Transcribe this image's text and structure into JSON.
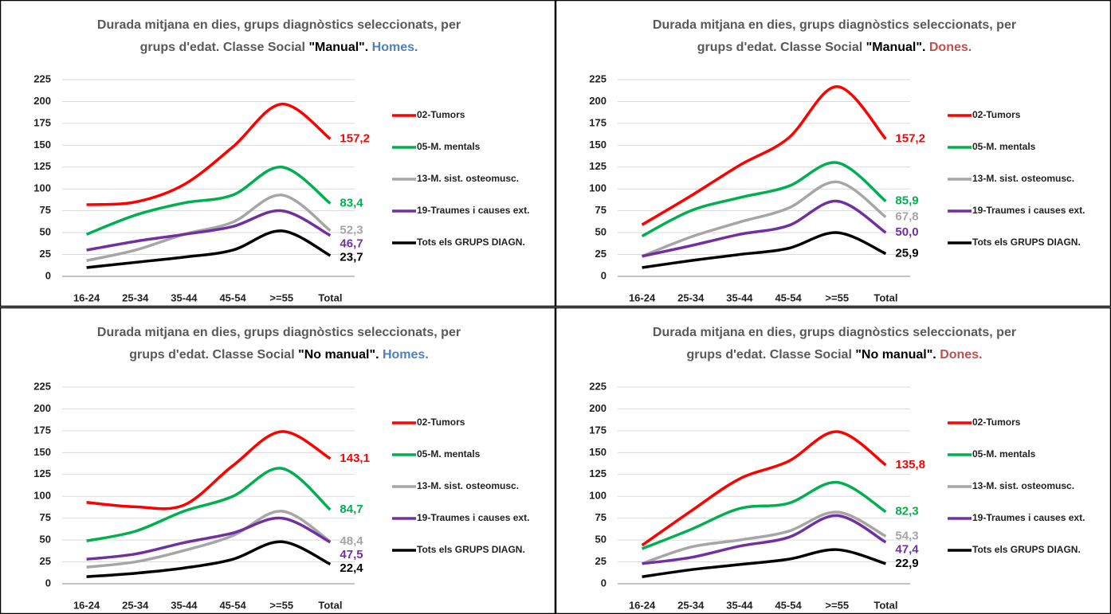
{
  "chart_data": [
    {
      "type": "line",
      "title_line1": "Durada mitjana en dies, grups diagnòstics seleccionats, per",
      "title_line2": "grups d'edat. Classe Social",
      "title_class": "\"Manual\".",
      "title_sex": "Homes.",
      "title_sex_color": "#4f81bd",
      "categories": [
        "16-24",
        "25-34",
        "35-44",
        "45-54",
        ">=55",
        "Total"
      ],
      "ylim": [
        0,
        225
      ],
      "yticks": [
        0,
        25,
        50,
        75,
        100,
        125,
        150,
        175,
        200,
        225
      ],
      "grid": true,
      "series": [
        {
          "name": "02-Tumors",
          "color": "#ff0000",
          "values": [
            82,
            85,
            105,
            148,
            197,
            157.2
          ],
          "total_label": "157,2"
        },
        {
          "name": "05-M. mentals",
          "color": "#00b050",
          "values": [
            48,
            70,
            84,
            93,
            125,
            83.4
          ],
          "total_label": "83,4"
        },
        {
          "name": "13-M. sist. osteomusc.",
          "color": "#a6a6a6",
          "values": [
            18,
            30,
            48,
            62,
            93,
            52.3
          ],
          "total_label": "52,3"
        },
        {
          "name": "19-Traumes i causes ext.",
          "color": "#7030a0",
          "values": [
            30,
            40,
            48,
            57,
            75,
            46.7
          ],
          "total_label": "46,7"
        },
        {
          "name": "Tots els GRUPS DIAGN.",
          "color": "#000000",
          "values": [
            10,
            16,
            22,
            30,
            52,
            23.7
          ],
          "total_label": "23,7"
        }
      ]
    },
    {
      "type": "line",
      "title_line1": "Durada mitjana en dies, grups diagnòstics seleccionats, per",
      "title_line2": "grups d'edat. Classe Social",
      "title_class": "\"Manual\".",
      "title_sex": "Dones.",
      "title_sex_color": "#c0504d",
      "categories": [
        "16-24",
        "25-34",
        "35-44",
        "45-54",
        ">=55",
        "Total"
      ],
      "ylim": [
        0,
        225
      ],
      "yticks": [
        0,
        25,
        50,
        75,
        100,
        125,
        150,
        175,
        200,
        225
      ],
      "grid": true,
      "series": [
        {
          "name": "02-Tumors",
          "color": "#ff0000",
          "values": [
            59,
            92,
            127,
            158,
            217,
            157.2
          ],
          "total_label": "157,2"
        },
        {
          "name": "05-M. mentals",
          "color": "#00b050",
          "values": [
            46,
            75,
            90,
            103,
            130,
            85.9
          ],
          "total_label": "85,9"
        },
        {
          "name": "13-M. sist. osteomusc.",
          "color": "#a6a6a6",
          "values": [
            23,
            45,
            62,
            78,
            108,
            67.8
          ],
          "total_label": "67,8"
        },
        {
          "name": "19-Traumes i causes ext.",
          "color": "#7030a0",
          "values": [
            23,
            35,
            48,
            58,
            86,
            50.0
          ],
          "total_label": "50,0"
        },
        {
          "name": "Tots els GRUPS DIAGN.",
          "color": "#000000",
          "values": [
            10,
            18,
            25,
            32,
            50,
            25.9
          ],
          "total_label": "25,9"
        }
      ]
    },
    {
      "type": "line",
      "title_line1": "Durada mitjana en dies, grups diagnòstics seleccionats, per",
      "title_line2": "grups d'edat. Classe Social",
      "title_class": "\"No manual\".",
      "title_sex": "Homes.",
      "title_sex_color": "#4f81bd",
      "categories": [
        "16-24",
        "25-34",
        "35-44",
        "45-54",
        ">=55",
        "Total"
      ],
      "ylim": [
        0,
        225
      ],
      "yticks": [
        0,
        25,
        50,
        75,
        100,
        125,
        150,
        175,
        200,
        225
      ],
      "grid": true,
      "series": [
        {
          "name": "02-Tumors",
          "color": "#ff0000",
          "values": [
            93,
            88,
            90,
            135,
            174,
            143.1
          ],
          "total_label": "143,1"
        },
        {
          "name": "05-M. mentals",
          "color": "#00b050",
          "values": [
            49,
            60,
            83,
            100,
            132,
            84.7
          ],
          "total_label": "84,7"
        },
        {
          "name": "13-M. sist. osteomusc.",
          "color": "#a6a6a6",
          "values": [
            19,
            25,
            38,
            55,
            83,
            48.4
          ],
          "total_label": "48,4"
        },
        {
          "name": "19-Traumes i causes ext.",
          "color": "#7030a0",
          "values": [
            28,
            34,
            47,
            58,
            75,
            47.5
          ],
          "total_label": "47,5"
        },
        {
          "name": "Tots els GRUPS DIAGN.",
          "color": "#000000",
          "values": [
            8,
            12,
            18,
            28,
            48,
            22.4
          ],
          "total_label": "22,4"
        }
      ]
    },
    {
      "type": "line",
      "title_line1": "Durada mitjana en dies, grups diagnòstics seleccionats, per",
      "title_line2": "grups d'edat. Classe Social",
      "title_class": "\"No manual\".",
      "title_sex": "Dones.",
      "title_sex_color": "#c0504d",
      "categories": [
        "16-24",
        "25-34",
        "35-44",
        "45-54",
        ">=55",
        "Total"
      ],
      "ylim": [
        0,
        225
      ],
      "yticks": [
        0,
        25,
        50,
        75,
        100,
        125,
        150,
        175,
        200,
        225
      ],
      "grid": true,
      "series": [
        {
          "name": "02-Tumors",
          "color": "#ff0000",
          "values": [
            44,
            83,
            120,
            140,
            174,
            135.8
          ],
          "total_label": "135,8"
        },
        {
          "name": "05-M. mentals",
          "color": "#00b050",
          "values": [
            40,
            62,
            86,
            92,
            116,
            82.3
          ],
          "total_label": "82,3"
        },
        {
          "name": "13-M. sist. osteomusc.",
          "color": "#a6a6a6",
          "values": [
            23,
            42,
            50,
            60,
            82,
            54.3
          ],
          "total_label": "54,3"
        },
        {
          "name": "19-Traumes i causes ext.",
          "color": "#7030a0",
          "values": [
            23,
            30,
            43,
            53,
            78,
            47.4
          ],
          "total_label": "47,4"
        },
        {
          "name": "Tots els GRUPS DIAGN.",
          "color": "#000000",
          "values": [
            8,
            16,
            22,
            28,
            39,
            22.9
          ],
          "total_label": "22,9"
        }
      ]
    }
  ]
}
